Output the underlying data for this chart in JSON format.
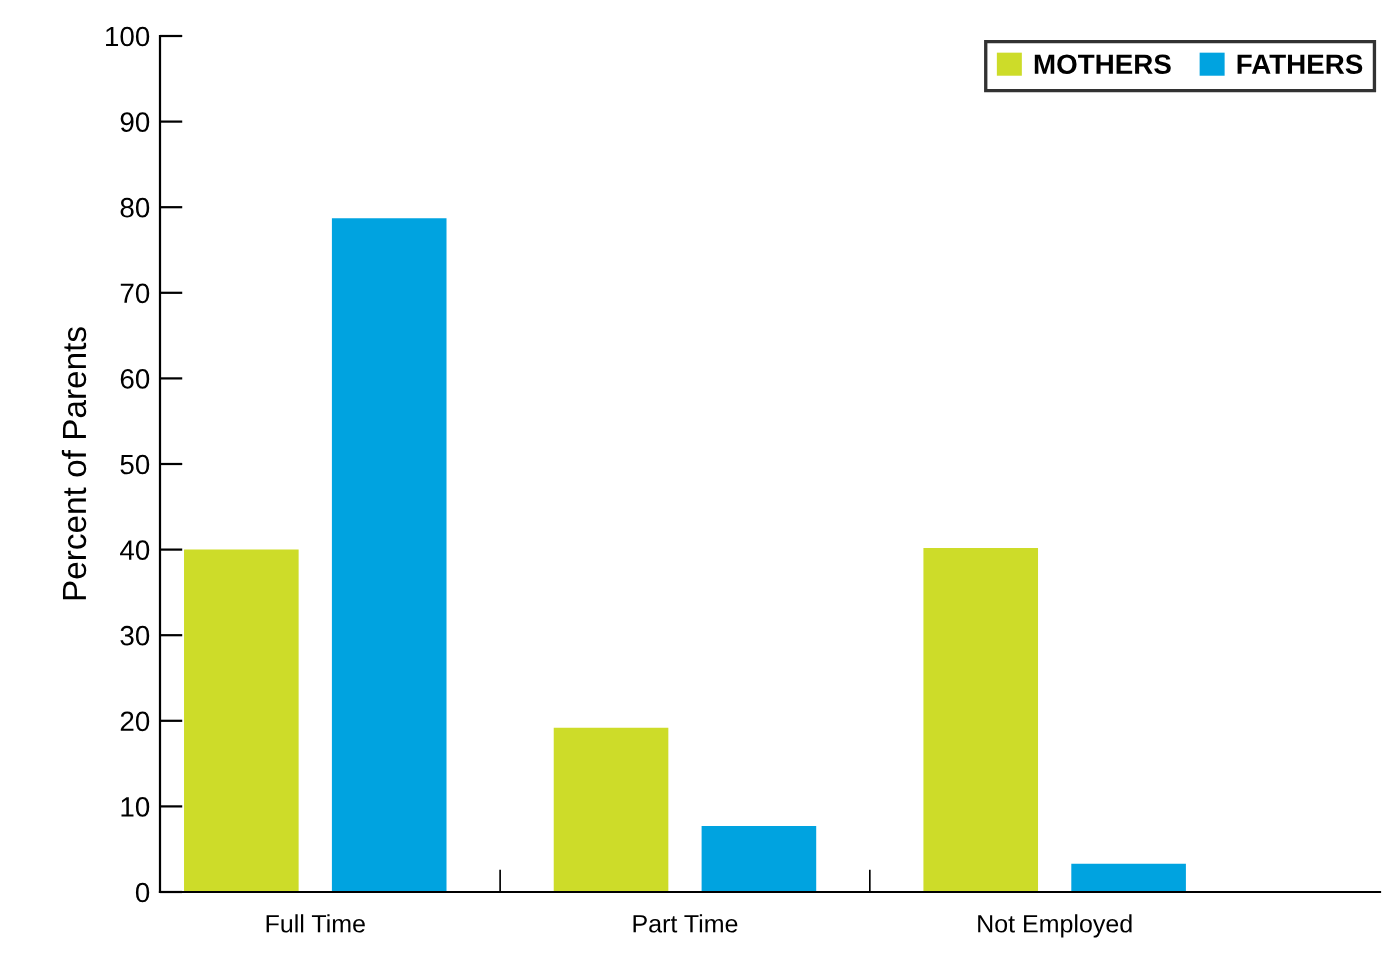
{
  "chart_data": {
    "type": "bar",
    "ylabel": "Percent of Parents",
    "categories": [
      "Full Time",
      "Part Time",
      "Not Employed"
    ],
    "series": [
      {
        "name": "MOTHERS",
        "color": "#cddc29",
        "values": [
          40,
          19.2,
          40.2
        ]
      },
      {
        "name": "FATHERS",
        "color": "#00a3e0",
        "values": [
          78.7,
          7.7,
          3.3
        ]
      }
    ],
    "ylim": [
      0,
      100
    ],
    "yticks": [
      0,
      10,
      20,
      30,
      40,
      50,
      60,
      70,
      80,
      90,
      100
    ],
    "grid": false,
    "legend": "top right"
  }
}
